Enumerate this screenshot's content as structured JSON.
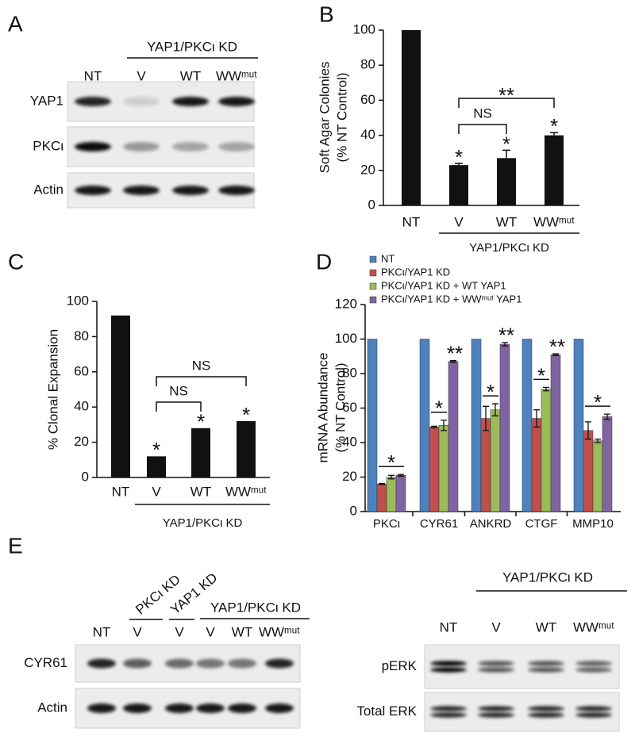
{
  "chart_data": [
    {
      "type": "bar",
      "panel": "B",
      "y_label": [
        "Soft Agar Colonies",
        "(% NT Control)"
      ],
      "categories": [
        "NT",
        "V",
        "WT",
        "WWᵐᵘᵗ"
      ],
      "values": [
        100,
        23,
        27,
        40
      ],
      "errors": [
        null,
        1,
        4.5,
        1.5
      ],
      "color": "#111111",
      "value_annotations": [
        null,
        "*",
        "*",
        "*"
      ],
      "brackets": [
        "NS",
        "**"
      ],
      "group_label": "YAP1/PKCι KD",
      "ylim": [
        0,
        100
      ],
      "yticks": [
        0,
        20,
        40,
        60,
        80,
        100
      ]
    },
    {
      "type": "bar",
      "panel": "C",
      "y_label": [
        "% Clonal Expansion"
      ],
      "categories": [
        "NT",
        "V",
        "WT",
        "WWᵐᵘᵗ"
      ],
      "values": [
        92,
        12,
        28,
        32
      ],
      "color": "#111111",
      "value_annotations": [
        null,
        "*",
        "*",
        "*"
      ],
      "brackets": [
        "NS",
        "NS"
      ],
      "group_label": "YAP1/PKCι KD",
      "ylim": [
        0,
        100
      ],
      "yticks": [
        0,
        20,
        40,
        60,
        80,
        100
      ]
    },
    {
      "type": "grouped_bar",
      "panel": "D",
      "y_label": [
        "mRNA Abundance",
        "(% NT Control)"
      ],
      "categories": [
        "PKCι",
        "CYR61",
        "ANKRD",
        "CTGF",
        "MMP10"
      ],
      "series": [
        {
          "name": "NT",
          "color": "#4f81bd",
          "values": [
            100,
            100,
            100,
            100,
            100
          ]
        },
        {
          "name": "PKCι/YAP1 KD",
          "color": "#c0504d",
          "values": [
            16,
            49,
            54,
            54,
            47
          ],
          "errors": [
            0.3,
            0.5,
            7,
            5,
            5
          ]
        },
        {
          "name": "PKCι/YAP1 KD + WT YAP1",
          "color": "#9bbb59",
          "values": [
            20,
            50,
            59,
            71,
            41
          ],
          "errors": [
            1,
            3,
            3.5,
            1,
            1
          ]
        },
        {
          "name": "PKCι/YAP1 KD + WWᵐᵘᵗ YAP1",
          "color": "#8064a2",
          "values": [
            21,
            87,
            97,
            91,
            55
          ],
          "errors": [
            0.5,
            0.5,
            1,
            0.5,
            1.5
          ]
        }
      ],
      "annotations": [
        [
          "*"
        ],
        [
          "*",
          "**"
        ],
        [
          "*",
          "**"
        ],
        [
          "*",
          "**"
        ],
        [
          "*"
        ]
      ],
      "ylim": [
        0,
        120
      ],
      "yticks": [
        0,
        20,
        40,
        60,
        80,
        100,
        120
      ]
    }
  ],
  "blots": [
    {
      "panel": "A",
      "groups": [
        "YAP1/PKCι KD"
      ],
      "lanes": [
        "NT",
        "V",
        "WT",
        "WWᵐᵘᵗ"
      ],
      "rows": [
        "YAP1",
        "PKCι",
        "Actin"
      ]
    },
    {
      "panel": "E",
      "groups": [
        "PKCι KD",
        "YAP1 KD",
        "YAP1/PKCι KD"
      ],
      "lanes": [
        "NT",
        "V",
        "V",
        "V",
        "WT",
        "WWᵐᵘᵗ"
      ],
      "rows": [
        "CYR61",
        "Actin"
      ]
    },
    {
      "groups": [
        "YAP1/PKCι KD"
      ],
      "lanes": [
        "NT",
        "V",
        "WT",
        "WWᵐᵘᵗ"
      ],
      "rows": [
        "pERK",
        "Total ERK"
      ]
    }
  ]
}
